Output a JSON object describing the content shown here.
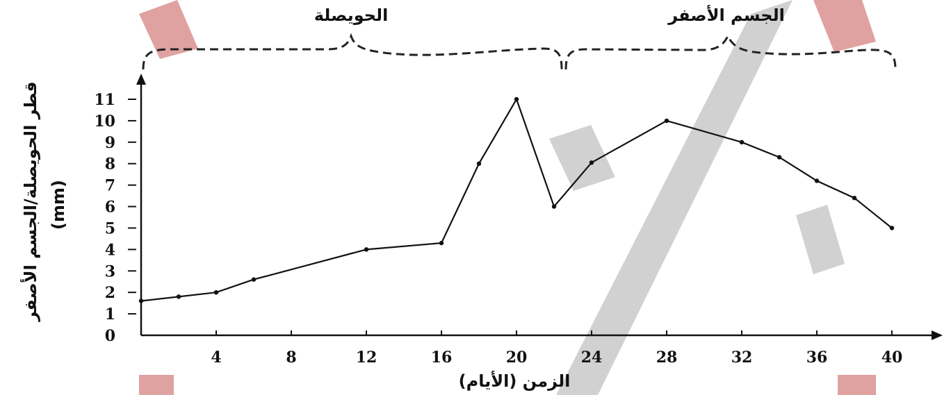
{
  "chart_data": {
    "type": "line",
    "xlabel": "الزمن (الأيام)",
    "ylabel": "قطر الحويصلة/الجسم الأصفر",
    "ylabel_unit": "(mm)",
    "xlim": [
      0,
      41.5
    ],
    "ylim": [
      0,
      11.5
    ],
    "x_ticks": [
      4,
      8,
      12,
      16,
      20,
      24,
      28,
      32,
      36,
      40
    ],
    "y_ticks": [
      0,
      1,
      2,
      3,
      4,
      5,
      6,
      7,
      8,
      9,
      10,
      11
    ],
    "grid": false,
    "series": [
      {
        "x": [
          0,
          2,
          4,
          6,
          12,
          16,
          18,
          20,
          22,
          24,
          28,
          32,
          34,
          36,
          38,
          40
        ],
        "y": [
          1.6,
          1.8,
          2.0,
          2.6,
          4.0,
          4.3,
          8.0,
          11.0,
          6.0,
          8.05,
          10.0,
          9.0,
          8.3,
          7.2,
          6.4,
          5.0
        ]
      }
    ],
    "annotations": [
      {
        "text": "الحويصلة",
        "x_start": 0,
        "x_end": 22.2
      },
      {
        "text": "الجسم الأصفر",
        "x_start": 22.6,
        "x_end": 40.2
      }
    ]
  }
}
